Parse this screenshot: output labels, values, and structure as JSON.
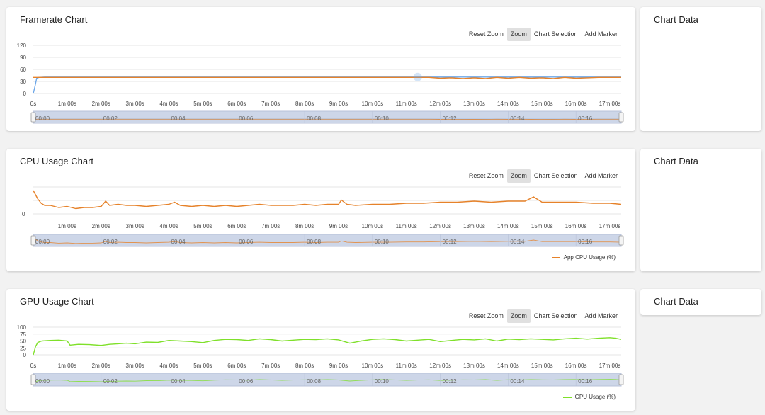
{
  "toolbar": {
    "reset_zoom": "Reset Zoom",
    "zoom": "Zoom",
    "chart_selection": "Chart Selection",
    "add_marker": "Add Marker"
  },
  "side_title": "Chart Data",
  "time_ticks": [
    "0s",
    "1m 00s",
    "2m 00s",
    "3m 00s",
    "4m 00s",
    "5m 00s",
    "6m 00s",
    "7m 00s",
    "8m 00s",
    "9m 00s",
    "10m 00s",
    "11m 00s",
    "12m 00s",
    "13m 00s",
    "14m 00s",
    "15m 00s",
    "16m 00s",
    "17m 00s"
  ],
  "navigator_ticks": [
    "00:00",
    "00:02",
    "00:04",
    "00:06",
    "00:08",
    "00:10",
    "00:12",
    "00:14",
    "00:16"
  ],
  "colors": {
    "framerate_blue": "#6fa8e8",
    "framerate_orange": "#e6822a",
    "cpu": "#e6822a",
    "gpu": "#7fe02a",
    "navigator_fill": "#cdd6e8",
    "grid": "#e6e6e6"
  },
  "chart_data": [
    {
      "type": "line",
      "title": "Framerate Chart",
      "x_unit": "seconds",
      "xlim": [
        0,
        1040
      ],
      "ylim": [
        0,
        120
      ],
      "yticks": [
        0,
        30,
        60,
        90,
        120
      ],
      "x_tick_labels": [
        "0s",
        "1m 00s",
        "2m 00s",
        "3m 00s",
        "4m 00s",
        "5m 00s",
        "6m 00s",
        "7m 00s",
        "8m 00s",
        "9m 00s",
        "10m 00s",
        "11m 00s",
        "12m 00s",
        "13m 00s",
        "14m 00s",
        "15m 00s",
        "16m 00s",
        "17m 00s"
      ],
      "series": [
        {
          "color": "#6fa8e8",
          "x": [
            0,
            3,
            6,
            10,
            20,
            60,
            120,
            240,
            360,
            480,
            600,
            660,
            690,
            720,
            780,
            840,
            900,
            960,
            1040
          ],
          "values": [
            0,
            18,
            38,
            40,
            41,
            41,
            41,
            41,
            41,
            41,
            41,
            41,
            41,
            41,
            41,
            41,
            41,
            41,
            41
          ]
        },
        {
          "color": "#e6822a",
          "x": [
            0,
            5,
            700,
            720,
            740,
            760,
            780,
            800,
            820,
            840,
            860,
            880,
            900,
            920,
            940,
            960,
            980,
            1000,
            1040
          ],
          "values": [
            40,
            40,
            40,
            38,
            39,
            37,
            39,
            37,
            40,
            38,
            40,
            38,
            39,
            37,
            40,
            38,
            39,
            40,
            40
          ]
        }
      ]
    },
    {
      "type": "line",
      "title": "CPU Usage Chart",
      "x_unit": "seconds",
      "xlim": [
        0,
        1040
      ],
      "yticks": [
        0
      ],
      "x_tick_labels": [
        "1m 00s",
        "2m 00s",
        "3m 00s",
        "4m 00s",
        "5m 00s",
        "6m 00s",
        "7m 00s",
        "8m 00s",
        "9m 00s",
        "10m 00s",
        "11m 00s",
        "12m 00s",
        "13m 00s",
        "14m 00s",
        "15m 00s",
        "16m 00s",
        "17m 00s"
      ],
      "series": [
        {
          "name": "App CPU Usage (%)",
          "color": "#e6822a",
          "x": [
            0,
            4,
            8,
            14,
            20,
            30,
            45,
            60,
            75,
            90,
            105,
            120,
            128,
            135,
            150,
            165,
            180,
            200,
            220,
            240,
            250,
            260,
            280,
            300,
            320,
            340,
            360,
            380,
            400,
            420,
            440,
            460,
            480,
            500,
            520,
            540,
            545,
            555,
            570,
            600,
            630,
            660,
            690,
            720,
            750,
            780,
            810,
            840,
            870,
            885,
            900,
            930,
            960,
            990,
            1020,
            1040
          ],
          "values": [
            22,
            18,
            14,
            10,
            8,
            8,
            6,
            7,
            5,
            6,
            6,
            7,
            12,
            8,
            9,
            8,
            8,
            7,
            8,
            9,
            11,
            8,
            7,
            8,
            7,
            8,
            7,
            8,
            9,
            8,
            8,
            8,
            9,
            8,
            9,
            9,
            13,
            9,
            8,
            9,
            9,
            10,
            10,
            11,
            11,
            12,
            11,
            12,
            12,
            16,
            11,
            11,
            11,
            10,
            10,
            9
          ]
        }
      ]
    },
    {
      "type": "line",
      "title": "GPU Usage Chart",
      "x_unit": "seconds",
      "xlim": [
        0,
        1040
      ],
      "ylim": [
        0,
        100
      ],
      "yticks": [
        0,
        25,
        50,
        75,
        100
      ],
      "x_tick_labels": [
        "0s",
        "1m 00s",
        "2m 00s",
        "3m 00s",
        "4m 00s",
        "5m 00s",
        "6m 00s",
        "7m 00s",
        "8m 00s",
        "9m 00s",
        "10m 00s",
        "11m 00s",
        "12m 00s",
        "13m 00s",
        "14m 00s",
        "15m 00s",
        "16m 00s",
        "17m 00s"
      ],
      "series": [
        {
          "name": "GPU Usage (%)",
          "color": "#7fe02a",
          "x": [
            0,
            4,
            8,
            15,
            30,
            45,
            60,
            65,
            80,
            100,
            120,
            135,
            150,
            165,
            180,
            200,
            220,
            240,
            260,
            280,
            300,
            320,
            340,
            360,
            380,
            400,
            420,
            440,
            460,
            480,
            500,
            520,
            540,
            560,
            580,
            600,
            620,
            640,
            660,
            680,
            700,
            720,
            740,
            760,
            780,
            800,
            820,
            840,
            860,
            880,
            900,
            920,
            940,
            960,
            980,
            1000,
            1020,
            1030,
            1040
          ],
          "values": [
            0,
            30,
            45,
            50,
            52,
            53,
            50,
            35,
            38,
            37,
            34,
            38,
            40,
            42,
            40,
            46,
            45,
            52,
            50,
            48,
            44,
            52,
            56,
            55,
            52,
            58,
            55,
            50,
            53,
            56,
            55,
            58,
            54,
            42,
            50,
            56,
            58,
            55,
            50,
            53,
            56,
            48,
            52,
            56,
            54,
            58,
            50,
            57,
            55,
            58,
            56,
            54,
            58,
            60,
            57,
            60,
            62,
            60,
            56
          ]
        }
      ]
    }
  ]
}
